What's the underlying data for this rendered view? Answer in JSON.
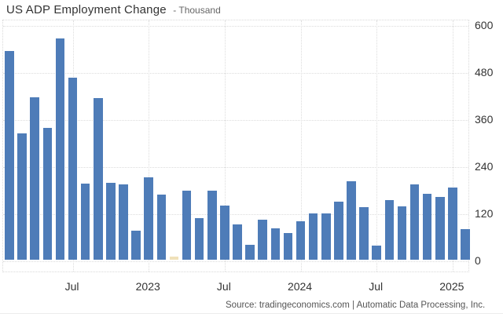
{
  "header": {
    "title": "US ADP Employment Change",
    "subtitle": "- Thousand"
  },
  "footer": {
    "source_text": "Source: tradingeconomics.com | Automatic Data Processing, Inc."
  },
  "colors": {
    "bar": "#4e7cb8",
    "highlight_bar": "#f0e1ba",
    "grid": "#dcdcdc",
    "tick_text": "#333333",
    "source_text": "#555555",
    "background": "#ffffff"
  },
  "y_axis": {
    "ticks": [
      600,
      480,
      360,
      240,
      120,
      0
    ]
  },
  "x_axis": {
    "ticks": [
      {
        "label": "Jul",
        "bar_index": 5
      },
      {
        "label": "2023",
        "bar_index": 11
      },
      {
        "label": "Jul",
        "bar_index": 17
      },
      {
        "label": "2024",
        "bar_index": 23
      },
      {
        "label": "Jul",
        "bar_index": 29
      },
      {
        "label": "2025",
        "bar_index": 35
      }
    ]
  },
  "chart_data": {
    "type": "bar",
    "title": "US ADP Employment Change",
    "ylabel": "Thousand",
    "xlabel": "",
    "ylim": [
      -30,
      612
    ],
    "grid": true,
    "legend": false,
    "x": [
      "Feb 2022",
      "Mar 2022",
      "Apr 2022",
      "May 2022",
      "Jun 2022",
      "Jul 2022",
      "Aug 2022",
      "Sep 2022",
      "Oct 2022",
      "Nov 2022",
      "Dec 2022",
      "Jan 2023",
      "Feb 2023",
      "Mar 2023",
      "Apr 2023",
      "May 2023",
      "Jun 2023",
      "Jul 2023",
      "Aug 2023",
      "Sep 2023",
      "Oct 2023",
      "Nov 2023",
      "Dec 2023",
      "Jan 2024",
      "Feb 2024",
      "Mar 2024",
      "Apr 2024",
      "May 2024",
      "Jun 2024",
      "Jul 2024",
      "Aug 2024",
      "Sep 2024",
      "Oct 2024",
      "Nov 2024",
      "Dec 2024",
      "Jan 2025",
      "Feb 2025"
    ],
    "values": [
      532,
      322,
      414,
      336,
      564,
      464,
      193,
      412,
      196,
      191,
      73,
      209,
      165,
      8,
      175,
      106,
      176,
      138,
      89,
      37,
      101,
      79,
      67,
      98,
      118,
      118,
      147,
      200,
      134,
      36,
      151,
      135,
      192,
      168,
      159,
      183,
      77
    ],
    "highlight_index": 13
  }
}
